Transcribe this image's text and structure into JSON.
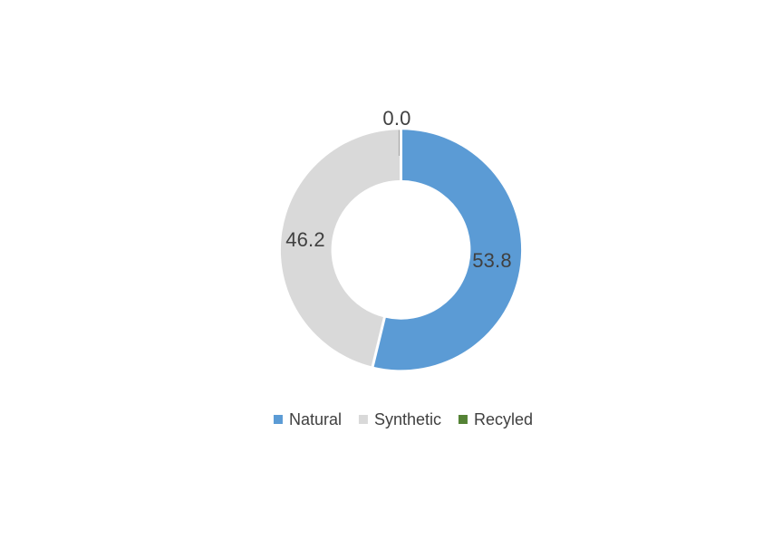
{
  "page": {
    "background": "#FFFFFF"
  },
  "chart_data": {
    "type": "pie",
    "subtype": "donut",
    "title": "",
    "categories": [
      "Natural",
      "Synthetic",
      "Recyled"
    ],
    "values": [
      53.8,
      46.2,
      0.0
    ],
    "data_labels": [
      "53.8",
      "46.2",
      "0.0"
    ],
    "colors": [
      "#5B9BD5",
      "#D9D9D9",
      "#548235"
    ],
    "start_angle_deg": 0,
    "direction": "clockwise",
    "hole_ratio": 0.58,
    "separator_color": "#FFFFFF",
    "data_label_color": "#404040",
    "leader_line_color": "#A6A6A6",
    "legend_position": "bottom",
    "legend_text_color": "#404040"
  }
}
